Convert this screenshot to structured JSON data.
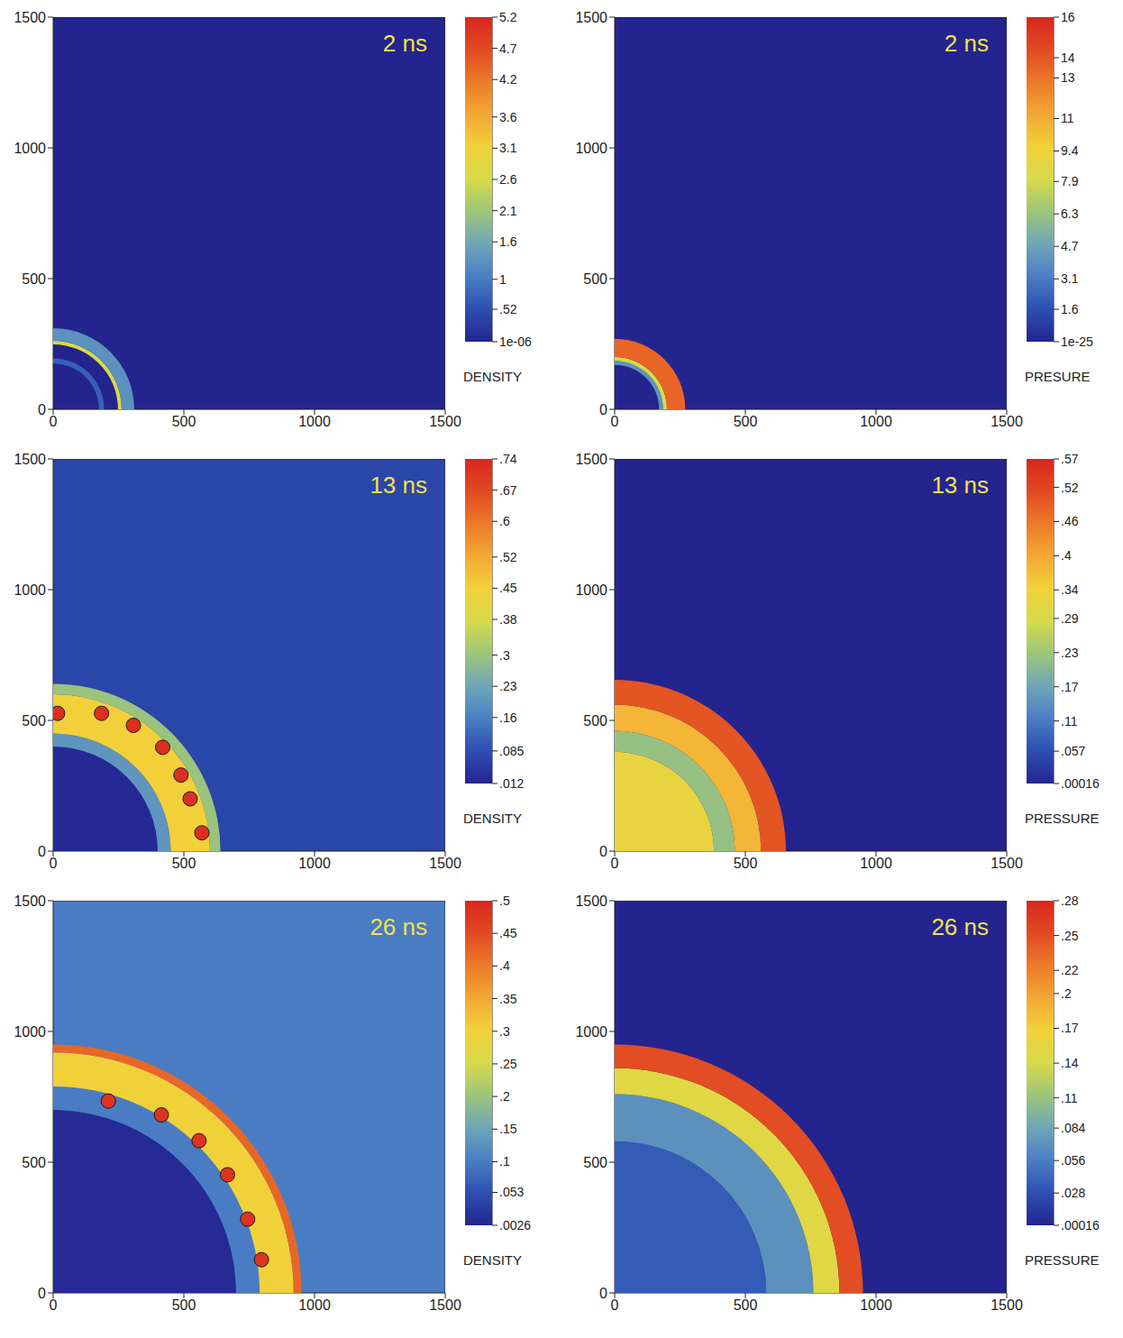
{
  "chart_data": [
    {
      "type": "heatmap",
      "title": "2 ns",
      "xlim": [
        0,
        1500
      ],
      "ylim": [
        0,
        1500
      ],
      "xticks": [
        0,
        500,
        1000,
        1500
      ],
      "yticks": [
        0,
        500,
        1000,
        1500
      ],
      "center": [
        0,
        0
      ],
      "background": 1e-06,
      "rings": [
        {
          "r": [
            175,
            195
          ],
          "value": 0.7
        },
        {
          "r": [
            248,
            262
          ],
          "value": 2.7
        },
        {
          "r": [
            262,
            310
          ],
          "value": 1.3
        }
      ],
      "spikes": [],
      "colorbar": {
        "label": "DENSITY",
        "range": [
          1e-06,
          5.2
        ],
        "ticks": [
          {
            "value": 1e-06,
            "label": "1e-06"
          },
          {
            "value": 0.52,
            "label": ".52"
          },
          1,
          1.6,
          2.1,
          2.6,
          3.1,
          3.6,
          4.2,
          4.7,
          5.2
        ]
      }
    },
    {
      "type": "heatmap",
      "title": "2 ns",
      "xlim": [
        0,
        1500
      ],
      "ylim": [
        0,
        1500
      ],
      "xticks": [
        0,
        500,
        1000,
        1500
      ],
      "yticks": [
        0,
        500,
        1000,
        1500
      ],
      "center": [
        0,
        0
      ],
      "background": 1e-25,
      "rings": [
        {
          "r": [
            170,
            185
          ],
          "value": 4
        },
        {
          "r": [
            185,
            200
          ],
          "value": 8
        },
        {
          "r": [
            200,
            270
          ],
          "value": 13.5
        }
      ],
      "spikes": [],
      "colorbar": {
        "label": "PRESURE",
        "range": [
          1e-25,
          16
        ],
        "ticks": [
          {
            "value": 1e-25,
            "label": "1e-25"
          },
          1.6,
          3.1,
          4.7,
          6.3,
          7.9,
          9.4,
          11,
          13,
          14,
          16
        ]
      }
    },
    {
      "type": "heatmap",
      "title": "13 ns",
      "xlim": [
        0,
        1500
      ],
      "ylim": [
        0,
        1500
      ],
      "xticks": [
        0,
        500,
        1000,
        1500
      ],
      "yticks": [
        0,
        500,
        1000,
        1500
      ],
      "center": [
        0,
        0
      ],
      "background": 0.07,
      "rings": [
        {
          "r": [
            0,
            400
          ],
          "value": 0.02
        },
        {
          "r": [
            400,
            450
          ],
          "value": 0.2
        },
        {
          "r": [
            450,
            600
          ],
          "value": 0.45
        },
        {
          "r": [
            600,
            640
          ],
          "value": 0.3
        }
      ],
      "spikes": [
        {
          "x": 17,
          "y": 527,
          "value": 0.72
        },
        {
          "x": 185,
          "y": 527,
          "value": 0.72
        },
        {
          "x": 307,
          "y": 481,
          "value": 0.72
        },
        {
          "x": 419,
          "y": 397,
          "value": 0.72
        },
        {
          "x": 489,
          "y": 291,
          "value": 0.72
        },
        {
          "x": 524,
          "y": 200,
          "value": 0.72
        },
        {
          "x": 569,
          "y": 70,
          "value": 0.72
        }
      ],
      "colorbar": {
        "label": "DENSITY",
        "range": [
          0.012,
          0.74
        ],
        "ticks": [
          {
            "value": 0.012,
            "label": ".012"
          },
          {
            "value": 0.085,
            "label": ".085"
          },
          {
            "value": 0.16,
            "label": ".16"
          },
          {
            "value": 0.23,
            "label": ".23"
          },
          {
            "value": 0.3,
            "label": ".3"
          },
          {
            "value": 0.38,
            "label": ".38"
          },
          {
            "value": 0.45,
            "label": ".45"
          },
          {
            "value": 0.52,
            "label": ".52"
          },
          {
            "value": 0.6,
            "label": ".6"
          },
          {
            "value": 0.67,
            "label": ".67"
          },
          {
            "value": 0.74,
            "label": ".74"
          }
        ]
      }
    },
    {
      "type": "heatmap",
      "title": "13 ns",
      "xlim": [
        0,
        1500
      ],
      "ylim": [
        0,
        1500
      ],
      "xticks": [
        0,
        500,
        1000,
        1500
      ],
      "yticks": [
        0,
        500,
        1000,
        1500
      ],
      "center": [
        0,
        0
      ],
      "background": 0.00016,
      "rings": [
        {
          "r": [
            0,
            380
          ],
          "value": 0.32
        },
        {
          "r": [
            380,
            460
          ],
          "value": 0.22
        },
        {
          "r": [
            460,
            560
          ],
          "value": 0.38
        },
        {
          "r": [
            560,
            655
          ],
          "value": 0.5
        }
      ],
      "spikes": [],
      "colorbar": {
        "label": "PRESSURE",
        "range": [
          0.00016,
          0.57
        ],
        "ticks": [
          {
            "value": 0.00016,
            "label": ".00016"
          },
          {
            "value": 0.057,
            "label": ".057"
          },
          {
            "value": 0.11,
            "label": ".11"
          },
          {
            "value": 0.17,
            "label": ".17"
          },
          {
            "value": 0.23,
            "label": ".23"
          },
          {
            "value": 0.29,
            "label": ".29"
          },
          {
            "value": 0.34,
            "label": ".34"
          },
          {
            "value": 0.4,
            "label": ".4"
          },
          {
            "value": 0.46,
            "label": ".46"
          },
          {
            "value": 0.52,
            "label": ".52"
          },
          {
            "value": 0.57,
            "label": ".57"
          }
        ]
      }
    },
    {
      "type": "heatmap",
      "title": "26 ns",
      "xlim": [
        0,
        1500
      ],
      "ylim": [
        0,
        1500
      ],
      "xticks": [
        0,
        500,
        1000,
        1500
      ],
      "yticks": [
        0,
        500,
        1000,
        1500
      ],
      "center": [
        0,
        0
      ],
      "background": 0.1,
      "rings": [
        {
          "r": [
            0,
            700
          ],
          "value": 0.01
        },
        {
          "r": [
            700,
            790
          ],
          "value": 0.1
        },
        {
          "r": [
            790,
            920
          ],
          "value": 0.3
        },
        {
          "r": [
            920,
            950
          ],
          "value": 0.42
        }
      ],
      "spikes": [
        {
          "x": 211,
          "y": 734,
          "value": 0.48
        },
        {
          "x": 414,
          "y": 681,
          "value": 0.48
        },
        {
          "x": 558,
          "y": 582,
          "value": 0.48
        },
        {
          "x": 667,
          "y": 452,
          "value": 0.48
        },
        {
          "x": 744,
          "y": 282,
          "value": 0.48
        },
        {
          "x": 797,
          "y": 127,
          "value": 0.48
        }
      ],
      "colorbar": {
        "label": "DENSITY",
        "range": [
          0.0026,
          0.5
        ],
        "ticks": [
          {
            "value": 0.0026,
            "label": ".0026"
          },
          {
            "value": 0.053,
            "label": ".053"
          },
          {
            "value": 0.1,
            "label": ".1"
          },
          {
            "value": 0.15,
            "label": ".15"
          },
          {
            "value": 0.2,
            "label": ".2"
          },
          {
            "value": 0.25,
            "label": ".25"
          },
          {
            "value": 0.3,
            "label": ".3"
          },
          {
            "value": 0.35,
            "label": ".35"
          },
          {
            "value": 0.4,
            "label": ".4"
          },
          {
            "value": 0.45,
            "label": ".45"
          },
          {
            "value": 0.5,
            "label": ".5"
          }
        ]
      }
    },
    {
      "type": "heatmap",
      "title": "26 ns",
      "xlim": [
        0,
        1500
      ],
      "ylim": [
        0,
        1500
      ],
      "xticks": [
        0,
        500,
        1000,
        1500
      ],
      "yticks": [
        0,
        500,
        1000,
        1500
      ],
      "center": [
        0,
        0
      ],
      "background": 0.00016,
      "rings": [
        {
          "r": [
            0,
            580
          ],
          "value": 0.035
        },
        {
          "r": [
            580,
            760
          ],
          "value": 0.07
        },
        {
          "r": [
            760,
            860
          ],
          "value": 0.15
        },
        {
          "r": [
            860,
            950
          ],
          "value": 0.25
        }
      ],
      "spikes": [],
      "colorbar": {
        "label": "PRESSURE",
        "range": [
          0.00016,
          0.28
        ],
        "ticks": [
          {
            "value": 0.00016,
            "label": ".00016"
          },
          {
            "value": 0.028,
            "label": ".028"
          },
          {
            "value": 0.056,
            "label": ".056"
          },
          {
            "value": 0.084,
            "label": ".084"
          },
          {
            "value": 0.11,
            "label": ".11"
          },
          {
            "value": 0.14,
            "label": ".14"
          },
          {
            "value": 0.17,
            "label": ".17"
          },
          {
            "value": 0.2,
            "label": ".2"
          },
          {
            "value": 0.22,
            "label": ".22"
          },
          {
            "value": 0.25,
            "label": ".25"
          },
          {
            "value": 0.28,
            "label": ".28"
          }
        ]
      }
    }
  ]
}
